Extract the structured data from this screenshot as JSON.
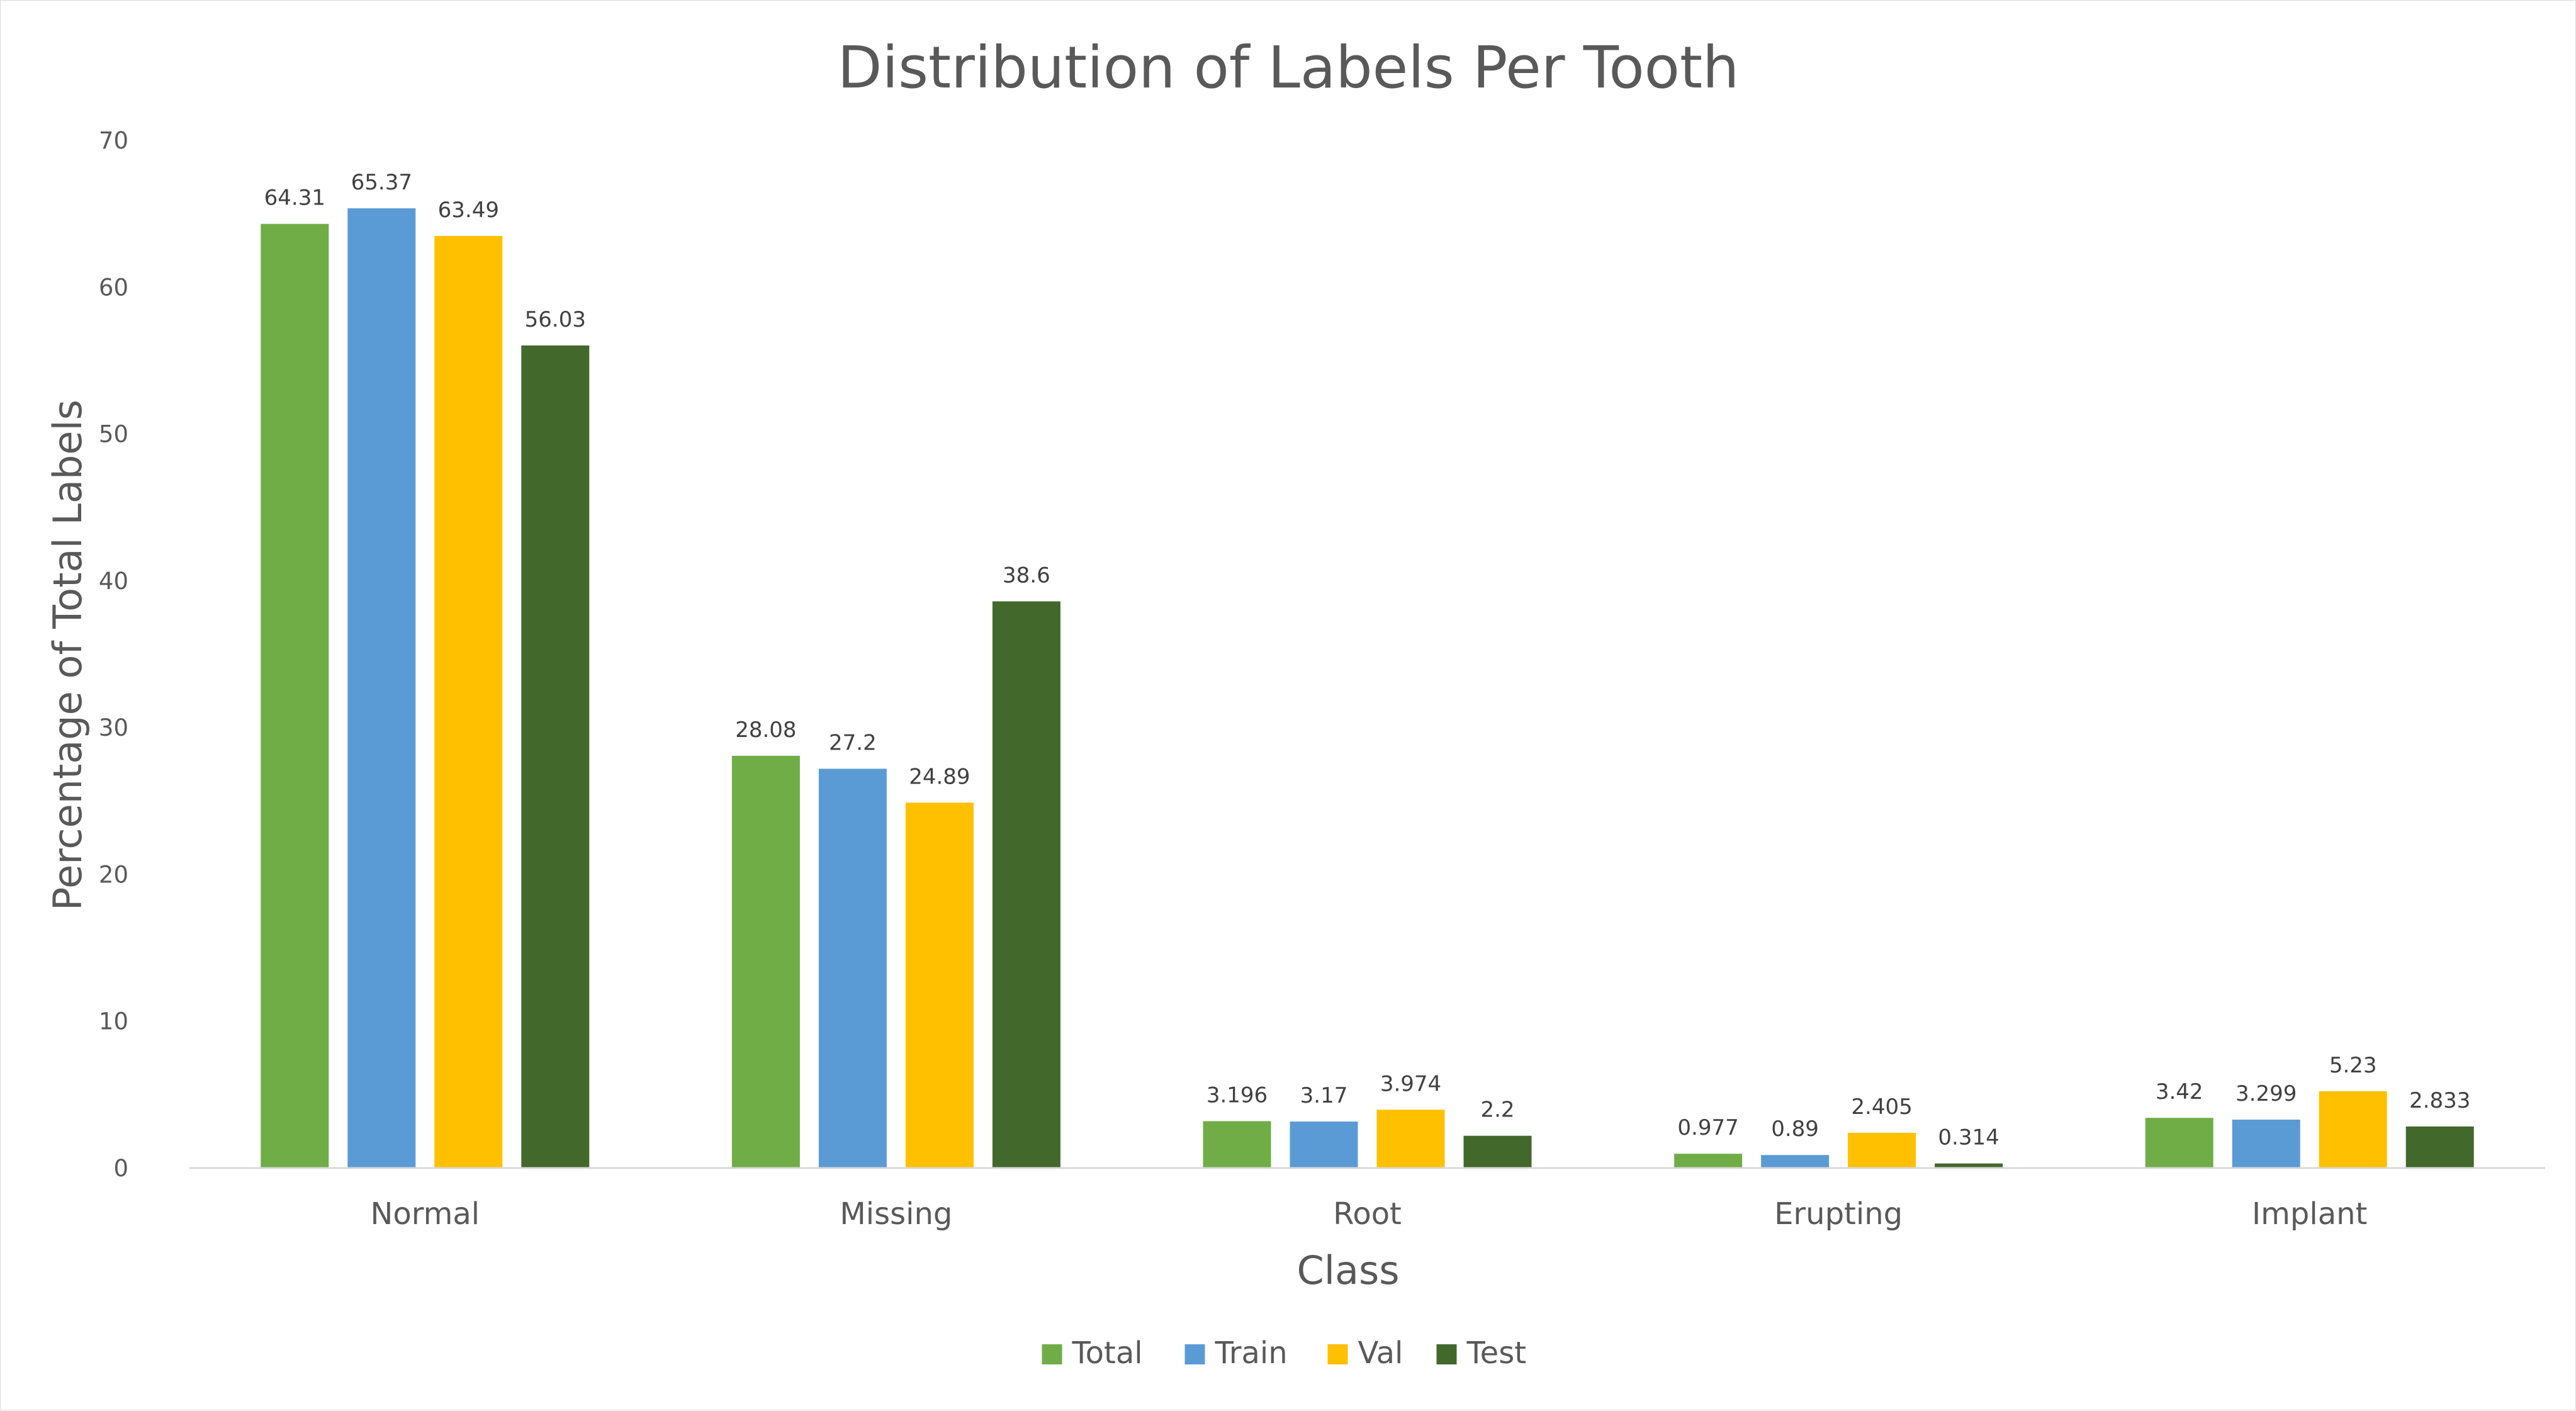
{
  "chart_data": {
    "type": "bar",
    "title": "Distribution of Labels Per Tooth",
    "xlabel": "Class",
    "ylabel": "Percentage of Total Labels",
    "categories": [
      "Normal",
      "Missing",
      "Root",
      "Erupting",
      "Implant"
    ],
    "series": [
      {
        "name": "Total",
        "color": "#70ad47",
        "values": [
          64.31,
          28.08,
          3.196,
          0.977,
          3.42
        ],
        "labels": [
          "64.31",
          "28.08",
          "3.196",
          "0.977",
          "3.42"
        ]
      },
      {
        "name": "Train",
        "color": "#5b9bd5",
        "values": [
          65.37,
          27.2,
          3.17,
          0.89,
          3.299
        ],
        "labels": [
          "65.37",
          "27.2",
          "3.17",
          "0.89",
          "3.299"
        ]
      },
      {
        "name": "Val",
        "color": "#ffc000",
        "values": [
          63.49,
          24.89,
          3.974,
          2.405,
          5.23
        ],
        "labels": [
          "63.49",
          "24.89",
          "3.974",
          "2.405",
          "5.23"
        ]
      },
      {
        "name": "Test",
        "color": "#43682b",
        "values": [
          56.03,
          38.6,
          2.2,
          0.314,
          2.833
        ],
        "labels": [
          "56.03",
          "38.6",
          "2.2",
          "0.314",
          "2.833"
        ]
      }
    ],
    "ylim": [
      0,
      70
    ],
    "yticks": [
      "0",
      "10",
      "20",
      "30",
      "40",
      "50",
      "60",
      "70"
    ],
    "grid": false,
    "legend_position": "bottom"
  }
}
